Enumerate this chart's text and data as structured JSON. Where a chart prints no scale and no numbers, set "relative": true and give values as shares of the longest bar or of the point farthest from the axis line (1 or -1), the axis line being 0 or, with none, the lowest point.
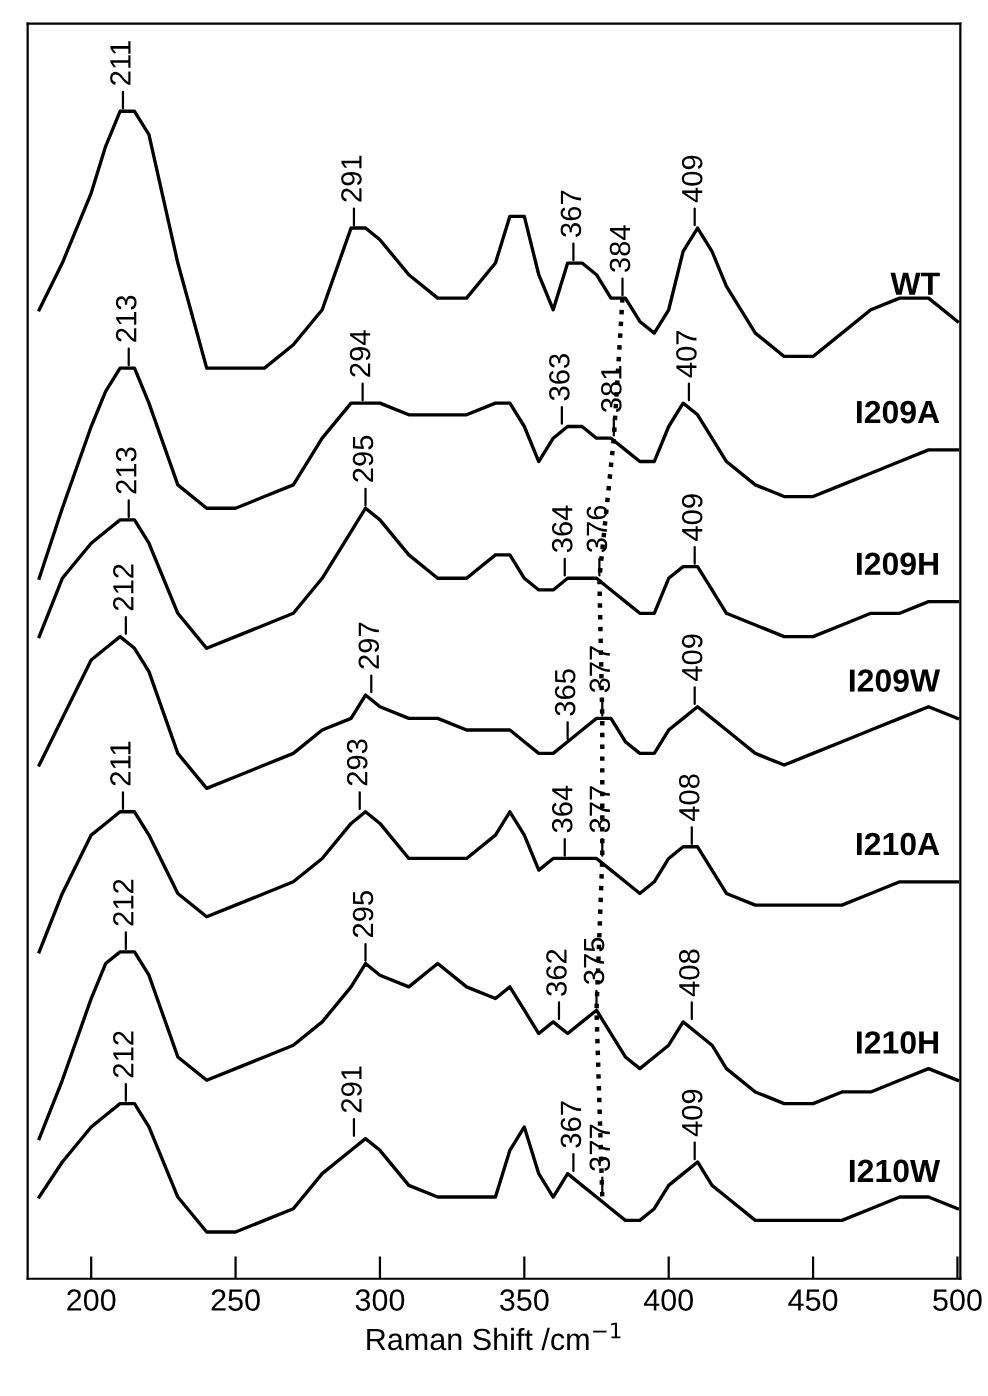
{
  "chart_data": {
    "type": "line",
    "relative": true,
    "xlabel": "Raman Shift /cm$^{−1}$",
    "xlim": [
      178,
      501
    ],
    "xticks": [
      200,
      250,
      300,
      350,
      400,
      450,
      500
    ],
    "tick_labels": "x",
    "grid": false,
    "legend": false,
    "line_style": "solid",
    "x": [
      182,
      190,
      200,
      205,
      210,
      215,
      220,
      230,
      240,
      250,
      260,
      270,
      280,
      290,
      295,
      300,
      310,
      320,
      330,
      340,
      345,
      350,
      355,
      360,
      365,
      370,
      375,
      380,
      385,
      390,
      395,
      400,
      405,
      410,
      415,
      420,
      430,
      440,
      450,
      460,
      470,
      480,
      490,
      500
    ],
    "series": [
      {
        "name": "WT",
        "color": "#000000",
        "values": [
          0.83,
          0.87,
          0.93,
          0.97,
          1.0,
          1.0,
          0.98,
          0.87,
          0.78,
          0.78,
          0.78,
          0.8,
          0.83,
          0.9,
          0.9,
          0.89,
          0.86,
          0.84,
          0.84,
          0.87,
          0.91,
          0.91,
          0.86,
          0.83,
          0.87,
          0.87,
          0.86,
          0.84,
          0.84,
          0.82,
          0.81,
          0.83,
          0.88,
          0.9,
          0.88,
          0.85,
          0.81,
          0.79,
          0.79,
          0.81,
          0.83,
          0.84,
          0.84,
          0.82
        ]
      },
      {
        "name": "I209A",
        "color": "#000000",
        "values": [
          0.6,
          0.66,
          0.73,
          0.76,
          0.78,
          0.78,
          0.75,
          0.68,
          0.66,
          0.66,
          0.67,
          0.68,
          0.72,
          0.75,
          0.75,
          0.75,
          0.74,
          0.74,
          0.74,
          0.75,
          0.75,
          0.73,
          0.7,
          0.72,
          0.73,
          0.73,
          0.72,
          0.72,
          0.71,
          0.7,
          0.7,
          0.73,
          0.75,
          0.74,
          0.72,
          0.7,
          0.68,
          0.67,
          0.67,
          0.68,
          0.69,
          0.7,
          0.71,
          0.71
        ]
      },
      {
        "name": "I209H",
        "color": "#000000",
        "values": [
          0.55,
          0.6,
          0.63,
          0.64,
          0.65,
          0.65,
          0.63,
          0.57,
          0.54,
          0.55,
          0.56,
          0.57,
          0.6,
          0.64,
          0.66,
          0.65,
          0.62,
          0.6,
          0.6,
          0.62,
          0.62,
          0.6,
          0.59,
          0.59,
          0.6,
          0.6,
          0.6,
          0.59,
          0.58,
          0.57,
          0.57,
          0.6,
          0.61,
          0.61,
          0.59,
          0.57,
          0.56,
          0.55,
          0.55,
          0.56,
          0.57,
          0.57,
          0.58,
          0.58
        ]
      },
      {
        "name": "I209W",
        "color": "#000000",
        "values": [
          0.44,
          0.48,
          0.53,
          0.54,
          0.55,
          0.54,
          0.52,
          0.45,
          0.42,
          0.43,
          0.44,
          0.45,
          0.47,
          0.48,
          0.5,
          0.49,
          0.48,
          0.48,
          0.47,
          0.47,
          0.47,
          0.46,
          0.45,
          0.45,
          0.46,
          0.47,
          0.48,
          0.48,
          0.46,
          0.45,
          0.45,
          0.47,
          0.48,
          0.49,
          0.48,
          0.47,
          0.45,
          0.44,
          0.45,
          0.46,
          0.47,
          0.48,
          0.49,
          0.48
        ]
      },
      {
        "name": "I210A",
        "color": "#000000",
        "values": [
          0.28,
          0.33,
          0.38,
          0.39,
          0.4,
          0.4,
          0.38,
          0.33,
          0.31,
          0.32,
          0.33,
          0.34,
          0.36,
          0.39,
          0.4,
          0.39,
          0.36,
          0.36,
          0.36,
          0.38,
          0.4,
          0.38,
          0.35,
          0.36,
          0.36,
          0.36,
          0.36,
          0.35,
          0.34,
          0.33,
          0.34,
          0.36,
          0.37,
          0.37,
          0.35,
          0.33,
          0.32,
          0.32,
          0.32,
          0.32,
          0.33,
          0.34,
          0.34,
          0.34
        ]
      },
      {
        "name": "I210H",
        "color": "#000000",
        "values": [
          0.12,
          0.17,
          0.24,
          0.27,
          0.28,
          0.28,
          0.26,
          0.19,
          0.17,
          0.18,
          0.19,
          0.2,
          0.22,
          0.25,
          0.27,
          0.26,
          0.25,
          0.27,
          0.25,
          0.24,
          0.25,
          0.23,
          0.21,
          0.22,
          0.21,
          0.22,
          0.23,
          0.21,
          0.19,
          0.18,
          0.19,
          0.2,
          0.22,
          0.21,
          0.2,
          0.18,
          0.16,
          0.15,
          0.15,
          0.16,
          0.16,
          0.17,
          0.18,
          0.17
        ]
      },
      {
        "name": "I210W",
        "color": "#000000",
        "values": [
          0.07,
          0.1,
          0.13,
          0.14,
          0.15,
          0.15,
          0.13,
          0.07,
          0.04,
          0.04,
          0.05,
          0.06,
          0.09,
          0.11,
          0.12,
          0.11,
          0.08,
          0.07,
          0.07,
          0.07,
          0.11,
          0.13,
          0.09,
          0.07,
          0.09,
          0.08,
          0.07,
          0.06,
          0.05,
          0.05,
          0.06,
          0.08,
          0.09,
          0.1,
          0.08,
          0.07,
          0.05,
          0.05,
          0.05,
          0.05,
          0.06,
          0.07,
          0.07,
          0.06
        ]
      },
      {
        "type": "line",
        "color": "#000000",
        "line_style": "dotted",
        "x": [
          384,
          381,
          376,
          377,
          377,
          375,
          377
        ],
        "values": [
          0.84,
          0.72,
          0.6,
          0.48,
          0.36,
          0.23,
          0.07
        ]
      }
    ],
    "annotations": [
      {
        "text": "211",
        "x": 211,
        "y": 1.0
      },
      {
        "text": "291",
        "x": 291,
        "y": 0.9
      },
      {
        "text": "367",
        "x": 367,
        "y": 0.87
      },
      {
        "text": "384",
        "x": 384,
        "y": 0.84
      },
      {
        "text": "409",
        "x": 409,
        "y": 0.9
      },
      {
        "text": "213",
        "x": 213,
        "y": 0.78
      },
      {
        "text": "294",
        "x": 294,
        "y": 0.75
      },
      {
        "text": "363",
        "x": 363,
        "y": 0.73
      },
      {
        "text": "381",
        "x": 381,
        "y": 0.72
      },
      {
        "text": "407",
        "x": 407,
        "y": 0.75
      },
      {
        "text": "213",
        "x": 213,
        "y": 0.65
      },
      {
        "text": "295",
        "x": 295,
        "y": 0.66
      },
      {
        "text": "364",
        "x": 364,
        "y": 0.6
      },
      {
        "text": "376",
        "x": 376,
        "y": 0.6
      },
      {
        "text": "409",
        "x": 409,
        "y": 0.61
      },
      {
        "text": "212",
        "x": 212,
        "y": 0.55
      },
      {
        "text": "297",
        "x": 297,
        "y": 0.5
      },
      {
        "text": "365",
        "x": 365,
        "y": 0.46
      },
      {
        "text": "377",
        "x": 377,
        "y": 0.48
      },
      {
        "text": "409",
        "x": 409,
        "y": 0.49
      },
      {
        "text": "211",
        "x": 211,
        "y": 0.4
      },
      {
        "text": "293",
        "x": 293,
        "y": 0.4
      },
      {
        "text": "364",
        "x": 364,
        "y": 0.36
      },
      {
        "text": "377",
        "x": 377,
        "y": 0.36
      },
      {
        "text": "408",
        "x": 408,
        "y": 0.37
      },
      {
        "text": "212",
        "x": 212,
        "y": 0.28
      },
      {
        "text": "295",
        "x": 295,
        "y": 0.27
      },
      {
        "text": "362",
        "x": 362,
        "y": 0.22
      },
      {
        "text": "375",
        "x": 375,
        "y": 0.23
      },
      {
        "text": "408",
        "x": 408,
        "y": 0.22
      },
      {
        "text": "212",
        "x": 212,
        "y": 0.15
      },
      {
        "text": "291",
        "x": 291,
        "y": 0.12
      },
      {
        "text": "367",
        "x": 367,
        "y": 0.09
      },
      {
        "text": "377",
        "x": 377,
        "y": 0.07
      },
      {
        "text": "409",
        "x": 409,
        "y": 0.1
      }
    ]
  }
}
